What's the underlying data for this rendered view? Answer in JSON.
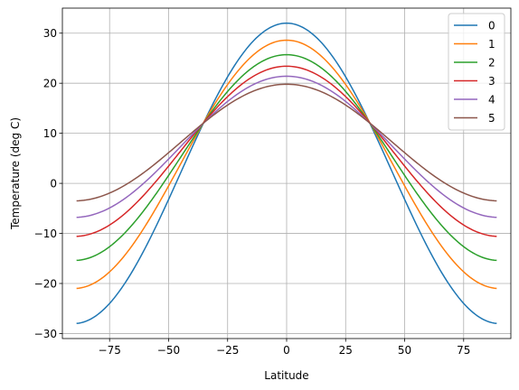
{
  "chart_data": {
    "type": "line",
    "xlabel": "Latitude",
    "ylabel": "Temperature (deg C)",
    "xlim": [
      -95,
      95
    ],
    "ylim": [
      -31,
      35
    ],
    "xticks": [
      -75,
      -50,
      -25,
      0,
      25,
      50,
      75
    ],
    "xtick_labels": [
      "−75",
      "−50",
      "−25",
      "0",
      "25",
      "50",
      "75"
    ],
    "yticks": [
      -30,
      -20,
      -10,
      0,
      10,
      20,
      30
    ],
    "ytick_labels": [
      "−30",
      "−20",
      "−10",
      "0",
      "10",
      "20",
      "30"
    ],
    "grid": true,
    "legend_position": "top-right",
    "x_range": [
      -89,
      89
    ],
    "series": [
      {
        "name": "0",
        "color": "#1f77b4",
        "equator": 32.0,
        "pole": -28.0
      },
      {
        "name": "1",
        "color": "#ff7f0e",
        "equator": 28.6,
        "pole": -21.0
      },
      {
        "name": "2",
        "color": "#2ca02c",
        "equator": 25.7,
        "pole": -15.4
      },
      {
        "name": "3",
        "color": "#d62728",
        "equator": 23.4,
        "pole": -10.6
      },
      {
        "name": "4",
        "color": "#9467bd",
        "equator": 21.4,
        "pole": -6.8
      },
      {
        "name": "5",
        "color": "#8c564b",
        "equator": 19.8,
        "pole": -3.5
      }
    ]
  }
}
